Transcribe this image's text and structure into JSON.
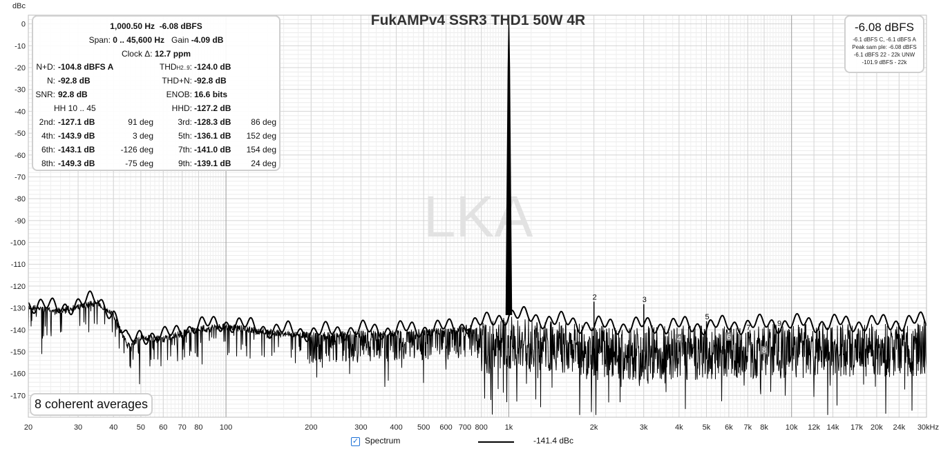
{
  "chart_data": {
    "type": "line",
    "title": "FukAMPv4 SSR3 THD1 50W 4R",
    "ylabel": "dBc",
    "xunit": "kHz",
    "xscale": "log",
    "xlim": [
      20,
      30000
    ],
    "ylim": [
      -180,
      4
    ],
    "grid": true,
    "watermark": "LKA",
    "x_ticks": [
      {
        "v": 20,
        "label": "20"
      },
      {
        "v": 30,
        "label": "30"
      },
      {
        "v": 40,
        "label": "40"
      },
      {
        "v": 50,
        "label": "50"
      },
      {
        "v": 60,
        "label": "60"
      },
      {
        "v": 70,
        "label": "70"
      },
      {
        "v": 80,
        "label": "80"
      },
      {
        "v": 100,
        "label": "100"
      },
      {
        "v": 200,
        "label": "200"
      },
      {
        "v": 300,
        "label": "300"
      },
      {
        "v": 400,
        "label": "400"
      },
      {
        "v": 500,
        "label": "500"
      },
      {
        "v": 600,
        "label": "600"
      },
      {
        "v": 700,
        "label": "700"
      },
      {
        "v": 800,
        "label": "800"
      },
      {
        "v": 1000,
        "label": "1k"
      },
      {
        "v": 2000,
        "label": "2k"
      },
      {
        "v": 3000,
        "label": "3k"
      },
      {
        "v": 4000,
        "label": "4k"
      },
      {
        "v": 5000,
        "label": "5k"
      },
      {
        "v": 6000,
        "label": "6k"
      },
      {
        "v": 7000,
        "label": "7k"
      },
      {
        "v": 8000,
        "label": "8k"
      },
      {
        "v": 10000,
        "label": "10k"
      },
      {
        "v": 12000,
        "label": "12k"
      },
      {
        "v": 14000,
        "label": "14k"
      },
      {
        "v": 17000,
        "label": "17k"
      },
      {
        "v": 20000,
        "label": "20k"
      },
      {
        "v": 24000,
        "label": "24k"
      },
      {
        "v": 30000,
        "label": "30kHz"
      }
    ],
    "y_ticks": [
      0,
      -10,
      -20,
      -30,
      -40,
      -50,
      -60,
      -70,
      -80,
      -90,
      -100,
      -110,
      -120,
      -130,
      -140,
      -150,
      -160,
      -170
    ],
    "series": [
      {
        "name": "Spectrum",
        "color": "#000000",
        "legend_value": "-141.4 dBc",
        "fundamental": {
          "x": 1000.5,
          "y": 0
        },
        "noise_floor_envelope": [
          [
            20,
            -128
          ],
          [
            25,
            -130
          ],
          [
            30,
            -128
          ],
          [
            35,
            -126
          ],
          [
            40,
            -132
          ],
          [
            45,
            -146
          ],
          [
            50,
            -142
          ],
          [
            60,
            -143
          ],
          [
            70,
            -140
          ],
          [
            80,
            -138
          ],
          [
            100,
            -137
          ],
          [
            150,
            -140
          ],
          [
            200,
            -141
          ],
          [
            300,
            -140
          ],
          [
            400,
            -140
          ],
          [
            600,
            -139
          ],
          [
            800,
            -137
          ],
          [
            1000,
            -133
          ],
          [
            2000,
            -138
          ],
          [
            5000,
            -138
          ],
          [
            10000,
            -137
          ],
          [
            20000,
            -137
          ],
          [
            30000,
            -136
          ]
        ],
        "harmonics": [
          {
            "label": "2",
            "x": 2001,
            "y": -127.1
          },
          {
            "label": "3",
            "x": 3002,
            "y": -128.3
          },
          {
            "label": "4",
            "x": 4002,
            "y": -143.9
          },
          {
            "label": "5",
            "x": 5003,
            "y": -136.1
          },
          {
            "label": "6",
            "x": 6003,
            "y": -143.1
          },
          {
            "label": "7",
            "x": 7004,
            "y": -141.0
          },
          {
            "label": "8",
            "x": 8004,
            "y": -149.3
          },
          {
            "label": "9",
            "x": 9005,
            "y": -139.1
          }
        ]
      }
    ]
  },
  "info": {
    "line1_freq": "1,000.50 Hz",
    "line1_level": "-6.08 dBFS",
    "span_label": "Span:",
    "span_value": "0 .. 45,600 Hz",
    "gain_label": "Gain",
    "gain_value": "-4.09 dB",
    "clock_label": "Clock Δ:",
    "clock_value": "12.7 ppm",
    "rows": [
      {
        "l1": "N+D:",
        "v1": "-104.8 dBFS A",
        "d1": "",
        "l2": "THD",
        "l2sub": "H2..9",
        "l2end": ":",
        "v2": "-124.0 dB",
        "d2": ""
      },
      {
        "l1": "N:",
        "v1": "-92.8 dB",
        "d1": "",
        "l2": "THD+N:",
        "l2sub": "",
        "l2end": "",
        "v2": "-92.8 dB",
        "d2": ""
      },
      {
        "l1": "SNR:",
        "v1": "92.8 dB",
        "d1": "",
        "l2": "ENOB:",
        "l2sub": "",
        "l2end": "",
        "v2": "16.6 bits",
        "d2": ""
      },
      {
        "l1": "HH 10 .. 45",
        "v1": "",
        "d1": "",
        "l2": "HHD:",
        "l2sub": "",
        "l2end": "",
        "v2": "-127.2 dB",
        "d2": ""
      },
      {
        "l1": "2nd:",
        "v1": "-127.1 dB",
        "d1": "91 deg",
        "l2": "3rd:",
        "l2sub": "",
        "l2end": "",
        "v2": "-128.3 dB",
        "d2": "86 deg"
      },
      {
        "l1": "4th:",
        "v1": "-143.9 dB",
        "d1": "3 deg",
        "l2": "5th:",
        "l2sub": "",
        "l2end": "",
        "v2": "-136.1 dB",
        "d2": "152 deg"
      },
      {
        "l1": "6th:",
        "v1": "-143.1 dB",
        "d1": "-126 deg",
        "l2": "7th:",
        "l2sub": "",
        "l2end": "",
        "v2": "-141.0 dB",
        "d2": "154 deg"
      },
      {
        "l1": "8th:",
        "v1": "-149.3 dB",
        "d1": "-75 deg",
        "l2": "9th:",
        "l2sub": "",
        "l2end": "",
        "v2": "-139.1 dB",
        "d2": "24 deg"
      }
    ]
  },
  "level_box": {
    "main": "-6.08 dBFS",
    "lines": [
      "-6.1 dBFS C, -6.1 dBFS A",
      "Peak sam ple: -6.08 dBFS",
      "-6.1 dBFS 22 - 22k UNW",
      "-101.9 dBFS - 22k"
    ]
  },
  "averages": "8 coherent averages",
  "legend": {
    "checkbox_label": "Spectrum",
    "checked": true,
    "value": "-141.4 dBc"
  }
}
